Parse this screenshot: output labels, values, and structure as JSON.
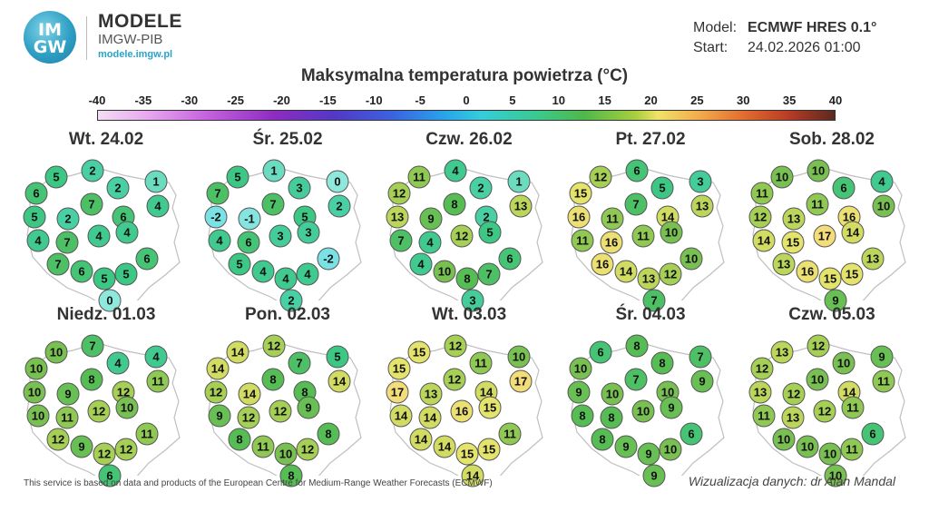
{
  "header": {
    "logo_top": "IM",
    "logo_bottom": "GW",
    "brand_name": "MODELE",
    "brand_institution": "IMGW-PIB",
    "brand_url": "modele.imgw.pl",
    "model_label": "Model:",
    "model_value": "ECMWF HRES 0.1°",
    "start_label": "Start:",
    "start_value": "24.02.2026 01:00"
  },
  "title": "Maksymalna temperatura powietrza (°C)",
  "scale": {
    "ticks": [
      "-40",
      "-35",
      "-30",
      "-25",
      "-20",
      "-15",
      "-10",
      "-5",
      "0",
      "5",
      "10",
      "15",
      "20",
      "25",
      "30",
      "35",
      "40"
    ],
    "min": -40,
    "max": 40
  },
  "footer": {
    "source": "This service is based on data and products of the European Centre for Medium-Range Weather Forecasts (ECMWF)",
    "credit": "Wizualizacja danych: dr Alan Mandal"
  },
  "panels": [
    {
      "date": "Wt. 24.02",
      "values": [
        5,
        2,
        6,
        2,
        1,
        5,
        2,
        7,
        6,
        4,
        4,
        7,
        4,
        4,
        7,
        6,
        5,
        5,
        6,
        0
      ]
    },
    {
      "date": "Śr. 25.02",
      "values": [
        5,
        1,
        7,
        3,
        0,
        -2,
        -1,
        7,
        5,
        2,
        4,
        6,
        3,
        3,
        5,
        4,
        4,
        4,
        -2,
        2
      ]
    },
    {
      "date": "Czw. 26.02",
      "values": [
        11,
        4,
        12,
        2,
        1,
        13,
        9,
        8,
        2,
        13,
        7,
        4,
        12,
        5,
        4,
        10,
        8,
        7,
        6,
        3
      ]
    },
    {
      "date": "Pt. 27.02",
      "values": [
        12,
        6,
        15,
        5,
        3,
        16,
        11,
        7,
        14,
        13,
        11,
        16,
        11,
        10,
        16,
        14,
        13,
        12,
        10,
        7
      ]
    },
    {
      "date": "Sob. 28.02",
      "values": [
        10,
        10,
        11,
        6,
        4,
        12,
        13,
        11,
        16,
        10,
        14,
        15,
        17,
        14,
        13,
        16,
        15,
        15,
        13,
        9
      ]
    },
    {
      "date": "Niedz. 01.03",
      "values": [
        10,
        7,
        10,
        4,
        4,
        10,
        9,
        8,
        12,
        11,
        10,
        11,
        12,
        10,
        12,
        9,
        12,
        12,
        11,
        6
      ]
    },
    {
      "date": "Pon. 02.03",
      "values": [
        14,
        12,
        14,
        7,
        5,
        12,
        14,
        8,
        8,
        14,
        9,
        12,
        12,
        9,
        8,
        11,
        10,
        12,
        8,
        8
      ]
    },
    {
      "date": "Wt. 03.03",
      "values": [
        15,
        12,
        15,
        11,
        10,
        17,
        13,
        12,
        14,
        17,
        14,
        14,
        16,
        15,
        14,
        14,
        15,
        15,
        11,
        14
      ]
    },
    {
      "date": "Śr. 04.03",
      "values": [
        6,
        8,
        10,
        8,
        7,
        9,
        10,
        7,
        10,
        9,
        8,
        8,
        10,
        9,
        8,
        9,
        9,
        10,
        6,
        9
      ]
    },
    {
      "date": "Czw. 05.03",
      "values": [
        13,
        12,
        12,
        10,
        9,
        13,
        12,
        10,
        14,
        11,
        11,
        13,
        12,
        11,
        10,
        10,
        10,
        11,
        6,
        10
      ]
    }
  ]
}
